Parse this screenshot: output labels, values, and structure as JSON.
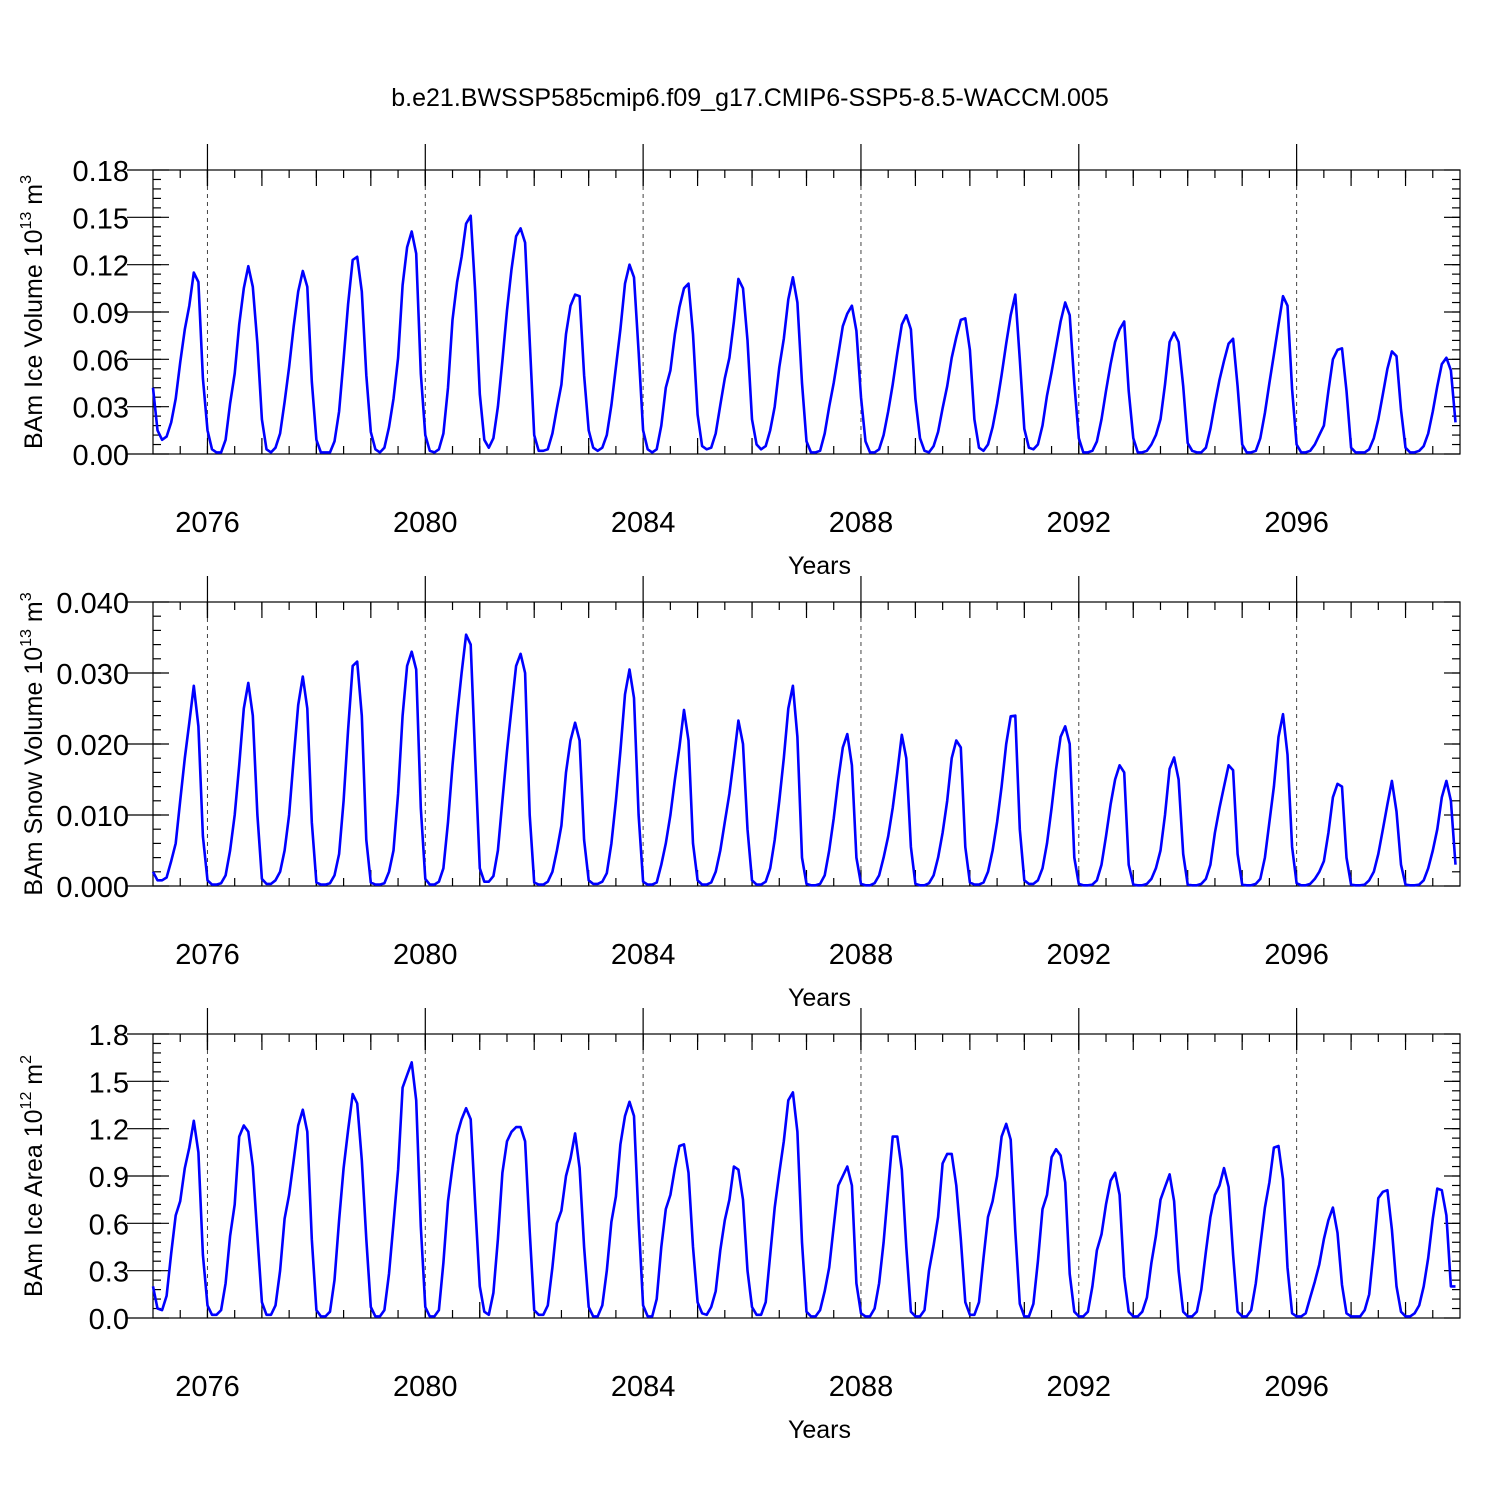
{
  "figure": {
    "title": "b.e21.BWSSP585cmip6.f09_g17.CMIP6-SSP5-8.5-WACCM.005",
    "line_color": "#0000ff"
  },
  "chart_data": [
    {
      "type": "line",
      "ylabel_main": "BAm Ice Volume 10",
      "ylabel_exp": "13",
      "ylabel_unit": " m",
      "ylabel_unit_exp": "3",
      "xlabel": "Years",
      "xlim": [
        2075,
        2099
      ],
      "ylim": [
        0,
        0.18
      ],
      "y_ticks": [
        0.0,
        0.03,
        0.06,
        0.09,
        0.12,
        0.15,
        0.18
      ],
      "y_tick_labels": [
        "0.00",
        "0.03",
        "0.06",
        "0.09",
        "0.12",
        "0.15",
        "0.18"
      ],
      "y_minor_step": 0.006,
      "x_ticks": [
        2076,
        2080,
        2084,
        2088,
        2092,
        2096
      ],
      "x_tick_labels": [
        "2076",
        "2080",
        "2084",
        "2088",
        "2092",
        "2096"
      ],
      "x_minor_step": 0.5,
      "grid": "vertical dashed lines at labelled years",
      "series": [
        {
          "start_year": 2075,
          "step": "monthly",
          "values": [
            0.042,
            0.015,
            0.009,
            0.011,
            0.02,
            0.035,
            0.058,
            0.079,
            0.094,
            0.115,
            0.109,
            0.048,
            0.015,
            0.003,
            0.001,
            0.001,
            0.009,
            0.032,
            0.051,
            0.082,
            0.105,
            0.119,
            0.106,
            0.07,
            0.022,
            0.003,
            0.001,
            0.004,
            0.013,
            0.033,
            0.055,
            0.081,
            0.103,
            0.116,
            0.106,
            0.046,
            0.009,
            0.001,
            0.001,
            0.001,
            0.008,
            0.027,
            0.06,
            0.095,
            0.123,
            0.125,
            0.103,
            0.05,
            0.014,
            0.003,
            0.001,
            0.004,
            0.017,
            0.035,
            0.061,
            0.107,
            0.131,
            0.141,
            0.127,
            0.051,
            0.012,
            0.002,
            0.001,
            0.003,
            0.013,
            0.042,
            0.085,
            0.109,
            0.125,
            0.146,
            0.151,
            0.103,
            0.038,
            0.009,
            0.004,
            0.01,
            0.03,
            0.059,
            0.091,
            0.117,
            0.138,
            0.143,
            0.134,
            0.072,
            0.012,
            0.002,
            0.002,
            0.003,
            0.013,
            0.029,
            0.044,
            0.076,
            0.094,
            0.101,
            0.1,
            0.05,
            0.015,
            0.004,
            0.002,
            0.004,
            0.012,
            0.031,
            0.055,
            0.079,
            0.108,
            0.12,
            0.112,
            0.065,
            0.015,
            0.003,
            0.001,
            0.003,
            0.018,
            0.042,
            0.053,
            0.076,
            0.093,
            0.105,
            0.108,
            0.076,
            0.025,
            0.005,
            0.003,
            0.004,
            0.013,
            0.031,
            0.048,
            0.061,
            0.084,
            0.111,
            0.105,
            0.072,
            0.022,
            0.006,
            0.003,
            0.005,
            0.015,
            0.03,
            0.055,
            0.073,
            0.098,
            0.112,
            0.096,
            0.045,
            0.008,
            0.001,
            0.001,
            0.002,
            0.013,
            0.03,
            0.045,
            0.063,
            0.081,
            0.089,
            0.094,
            0.078,
            0.036,
            0.008,
            0.001,
            0.001,
            0.003,
            0.012,
            0.027,
            0.044,
            0.064,
            0.082,
            0.088,
            0.079,
            0.035,
            0.01,
            0.002,
            0.001,
            0.005,
            0.014,
            0.029,
            0.043,
            0.061,
            0.074,
            0.085,
            0.086,
            0.066,
            0.022,
            0.004,
            0.002,
            0.006,
            0.017,
            0.032,
            0.05,
            0.07,
            0.088,
            0.101,
            0.06,
            0.016,
            0.004,
            0.003,
            0.006,
            0.018,
            0.037,
            0.052,
            0.068,
            0.084,
            0.096,
            0.088,
            0.045,
            0.01,
            0.001,
            0.001,
            0.002,
            0.008,
            0.022,
            0.04,
            0.057,
            0.071,
            0.079,
            0.084,
            0.04,
            0.01,
            0.001,
            0.001,
            0.002,
            0.006,
            0.012,
            0.022,
            0.044,
            0.071,
            0.077,
            0.071,
            0.043,
            0.007,
            0.002,
            0.001,
            0.001,
            0.004,
            0.016,
            0.032,
            0.047,
            0.059,
            0.07,
            0.073,
            0.043,
            0.006,
            0.001,
            0.001,
            0.002,
            0.01,
            0.026,
            0.045,
            0.063,
            0.082,
            0.1,
            0.094,
            0.041,
            0.006,
            0.001,
            0.001,
            0.002,
            0.006,
            0.012,
            0.018,
            0.04,
            0.06,
            0.066,
            0.067,
            0.04,
            0.004,
            0.001,
            0.001,
            0.001,
            0.003,
            0.01,
            0.022,
            0.038,
            0.054,
            0.065,
            0.062,
            0.028,
            0.004,
            0.001,
            0.001,
            0.002,
            0.005,
            0.013,
            0.027,
            0.043,
            0.057,
            0.061,
            0.053,
            0.02
          ]
        }
      ]
    },
    {
      "type": "line",
      "ylabel_main": "BAm Snow Volume 10",
      "ylabel_exp": "13",
      "ylabel_unit": " m",
      "ylabel_unit_exp": "3",
      "xlabel": "Years",
      "xlim": [
        2075,
        2099
      ],
      "ylim": [
        0,
        0.04
      ],
      "y_ticks": [
        0.0,
        0.01,
        0.02,
        0.03,
        0.04
      ],
      "y_tick_labels": [
        "0.000",
        "0.010",
        "0.020",
        "0.030",
        "0.040"
      ],
      "y_minor_step": 0.002,
      "x_ticks": [
        2076,
        2080,
        2084,
        2088,
        2092,
        2096
      ],
      "x_tick_labels": [
        "2076",
        "2080",
        "2084",
        "2088",
        "2092",
        "2096"
      ],
      "x_minor_step": 0.5,
      "grid": "vertical dashed lines at labelled years",
      "series": [
        {
          "start_year": 2075,
          "step": "monthly",
          "values": [
            0.002,
            0.0008,
            0.0008,
            0.0012,
            0.0035,
            0.006,
            0.012,
            0.018,
            0.023,
            0.0282,
            0.0225,
            0.007,
            0.0008,
            0.0002,
            0.0002,
            0.0004,
            0.0015,
            0.005,
            0.01,
            0.017,
            0.025,
            0.0286,
            0.024,
            0.01,
            0.001,
            0.0003,
            0.0003,
            0.0008,
            0.002,
            0.005,
            0.01,
            0.018,
            0.0255,
            0.0295,
            0.025,
            0.009,
            0.0005,
            0.0002,
            0.0002,
            0.0004,
            0.0015,
            0.0045,
            0.012,
            0.022,
            0.031,
            0.0316,
            0.024,
            0.0065,
            0.0005,
            0.0002,
            0.0002,
            0.0004,
            0.002,
            0.005,
            0.013,
            0.024,
            0.031,
            0.033,
            0.0305,
            0.011,
            0.001,
            0.0002,
            0.0002,
            0.0006,
            0.0025,
            0.009,
            0.017,
            0.024,
            0.03,
            0.0354,
            0.034,
            0.018,
            0.0025,
            0.0006,
            0.0006,
            0.0014,
            0.005,
            0.012,
            0.019,
            0.025,
            0.031,
            0.0327,
            0.03,
            0.01,
            0.0005,
            0.0002,
            0.0002,
            0.0006,
            0.002,
            0.005,
            0.0085,
            0.016,
            0.0205,
            0.023,
            0.0205,
            0.0065,
            0.0008,
            0.0003,
            0.0003,
            0.0006,
            0.0018,
            0.006,
            0.012,
            0.019,
            0.027,
            0.0305,
            0.0265,
            0.01,
            0.0006,
            0.0002,
            0.0002,
            0.0005,
            0.003,
            0.006,
            0.01,
            0.015,
            0.0195,
            0.0248,
            0.0205,
            0.006,
            0.0008,
            0.0002,
            0.0002,
            0.0005,
            0.002,
            0.005,
            0.009,
            0.013,
            0.018,
            0.0233,
            0.02,
            0.008,
            0.0008,
            0.0002,
            0.0002,
            0.0006,
            0.0025,
            0.0065,
            0.012,
            0.018,
            0.025,
            0.0282,
            0.021,
            0.004,
            0.0003,
            0.0001,
            0.0001,
            0.0003,
            0.0015,
            0.005,
            0.0095,
            0.015,
            0.0195,
            0.0214,
            0.017,
            0.004,
            0.0003,
            0.0001,
            0.0001,
            0.0004,
            0.0015,
            0.004,
            0.007,
            0.011,
            0.016,
            0.0213,
            0.018,
            0.0055,
            0.0003,
            0.0001,
            0.0001,
            0.0004,
            0.0015,
            0.004,
            0.0075,
            0.012,
            0.018,
            0.0205,
            0.0195,
            0.0055,
            0.0005,
            0.0002,
            0.0002,
            0.0005,
            0.002,
            0.005,
            0.009,
            0.014,
            0.02,
            0.0239,
            0.024,
            0.008,
            0.0008,
            0.0003,
            0.0003,
            0.0008,
            0.0025,
            0.006,
            0.011,
            0.0165,
            0.021,
            0.0225,
            0.02,
            0.004,
            0.0003,
            0.0001,
            0.0001,
            0.0002,
            0.0008,
            0.003,
            0.007,
            0.0115,
            0.015,
            0.017,
            0.016,
            0.003,
            0.0002,
            0.0001,
            0.0001,
            0.0003,
            0.001,
            0.0025,
            0.005,
            0.01,
            0.0165,
            0.0181,
            0.015,
            0.0045,
            0.0002,
            0.0001,
            0.0001,
            0.0003,
            0.001,
            0.003,
            0.0075,
            0.011,
            0.014,
            0.017,
            0.0163,
            0.0045,
            0.0002,
            0.0001,
            0.0001,
            0.0003,
            0.001,
            0.004,
            0.009,
            0.014,
            0.021,
            0.0242,
            0.0185,
            0.0055,
            0.0004,
            0.0001,
            0.0001,
            0.0003,
            0.001,
            0.002,
            0.0035,
            0.0075,
            0.0125,
            0.0144,
            0.014,
            0.004,
            0.0002,
            0.0001,
            0.0001,
            0.0002,
            0.0008,
            0.002,
            0.0045,
            0.008,
            0.0115,
            0.0148,
            0.0105,
            0.003,
            0.0002,
            0.0001,
            0.0001,
            0.0002,
            0.0008,
            0.0025,
            0.005,
            0.008,
            0.0125,
            0.0148,
            0.012,
            0.003
          ]
        }
      ]
    },
    {
      "type": "line",
      "ylabel_main": "BAm Ice Area 10",
      "ylabel_exp": "12",
      "ylabel_unit": " m",
      "ylabel_unit_exp": "2",
      "xlabel": "Years",
      "xlim": [
        2075,
        2099
      ],
      "ylim": [
        0,
        1.8
      ],
      "y_ticks": [
        0.0,
        0.3,
        0.6,
        0.9,
        1.2,
        1.5,
        1.8
      ],
      "y_tick_labels": [
        "0.0",
        "0.3",
        "0.6",
        "0.9",
        "1.2",
        "1.5",
        "1.8"
      ],
      "y_minor_step": 0.06,
      "x_ticks": [
        2076,
        2080,
        2084,
        2088,
        2092,
        2096
      ],
      "x_tick_labels": [
        "2076",
        "2080",
        "2084",
        "2088",
        "2092",
        "2096"
      ],
      "x_minor_step": 0.5,
      "grid": "vertical dashed lines at labelled years",
      "series": [
        {
          "start_year": 2075,
          "step": "monthly",
          "values": [
            0.2,
            0.06,
            0.05,
            0.14,
            0.41,
            0.65,
            0.74,
            0.95,
            1.08,
            1.25,
            1.05,
            0.4,
            0.08,
            0.02,
            0.02,
            0.05,
            0.22,
            0.52,
            0.72,
            1.15,
            1.22,
            1.18,
            0.96,
            0.52,
            0.1,
            0.02,
            0.02,
            0.08,
            0.3,
            0.63,
            0.78,
            1.0,
            1.22,
            1.32,
            1.18,
            0.5,
            0.05,
            0.01,
            0.01,
            0.04,
            0.24,
            0.62,
            0.95,
            1.19,
            1.42,
            1.36,
            1.0,
            0.5,
            0.07,
            0.01,
            0.01,
            0.05,
            0.28,
            0.6,
            0.94,
            1.46,
            1.54,
            1.62,
            1.38,
            0.58,
            0.07,
            0.01,
            0.01,
            0.05,
            0.35,
            0.74,
            0.96,
            1.16,
            1.26,
            1.33,
            1.26,
            0.72,
            0.2,
            0.04,
            0.02,
            0.16,
            0.5,
            0.92,
            1.12,
            1.18,
            1.21,
            1.21,
            1.12,
            0.55,
            0.05,
            0.02,
            0.02,
            0.08,
            0.32,
            0.6,
            0.68,
            0.9,
            1.01,
            1.17,
            0.95,
            0.45,
            0.07,
            0.01,
            0.01,
            0.08,
            0.3,
            0.61,
            0.77,
            1.1,
            1.28,
            1.37,
            1.28,
            0.62,
            0.08,
            0.01,
            0.01,
            0.12,
            0.45,
            0.69,
            0.78,
            0.95,
            1.09,
            1.1,
            0.92,
            0.45,
            0.1,
            0.03,
            0.02,
            0.07,
            0.17,
            0.43,
            0.62,
            0.75,
            0.96,
            0.94,
            0.75,
            0.3,
            0.07,
            0.02,
            0.02,
            0.1,
            0.4,
            0.7,
            0.92,
            1.12,
            1.38,
            1.43,
            1.18,
            0.48,
            0.04,
            0.01,
            0.01,
            0.05,
            0.17,
            0.32,
            0.58,
            0.84,
            0.9,
            0.96,
            0.84,
            0.22,
            0.03,
            0.01,
            0.01,
            0.06,
            0.22,
            0.48,
            0.82,
            1.15,
            1.15,
            0.94,
            0.45,
            0.04,
            0.01,
            0.01,
            0.05,
            0.3,
            0.46,
            0.64,
            0.98,
            1.04,
            1.04,
            0.84,
            0.5,
            0.1,
            0.02,
            0.02,
            0.1,
            0.38,
            0.64,
            0.74,
            0.9,
            1.15,
            1.23,
            1.13,
            0.55,
            0.09,
            0.01,
            0.01,
            0.09,
            0.36,
            0.69,
            0.78,
            1.02,
            1.07,
            1.03,
            0.86,
            0.28,
            0.04,
            0.01,
            0.01,
            0.04,
            0.2,
            0.43,
            0.53,
            0.72,
            0.87,
            0.92,
            0.78,
            0.26,
            0.04,
            0.01,
            0.01,
            0.04,
            0.13,
            0.35,
            0.52,
            0.75,
            0.83,
            0.91,
            0.74,
            0.3,
            0.04,
            0.01,
            0.01,
            0.04,
            0.18,
            0.42,
            0.64,
            0.78,
            0.84,
            0.95,
            0.83,
            0.4,
            0.04,
            0.01,
            0.01,
            0.05,
            0.22,
            0.46,
            0.7,
            0.86,
            1.08,
            1.09,
            0.88,
            0.32,
            0.03,
            0.01,
            0.01,
            0.03,
            0.13,
            0.23,
            0.34,
            0.5,
            0.62,
            0.7,
            0.54,
            0.21,
            0.03,
            0.01,
            0.01,
            0.01,
            0.05,
            0.15,
            0.44,
            0.76,
            0.8,
            0.81,
            0.56,
            0.2,
            0.04,
            0.01,
            0.01,
            0.03,
            0.08,
            0.2,
            0.38,
            0.63,
            0.82,
            0.81,
            0.65,
            0.2,
            0.2
          ]
        }
      ]
    }
  ]
}
